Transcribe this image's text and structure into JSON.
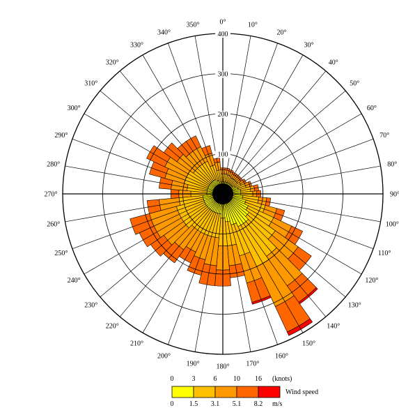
{
  "chart_data": {
    "type": "wind-rose",
    "sector_width_deg": 10,
    "direction_labels": [
      "0",
      "10",
      "20",
      "30",
      "40",
      "50",
      "60",
      "70",
      "80",
      "90",
      "100",
      "110",
      "120",
      "130",
      "140",
      "150",
      "160",
      "170",
      "180",
      "190",
      "200",
      "210",
      "220",
      "230",
      "240",
      "250",
      "260",
      "270",
      "280",
      "290",
      "300",
      "310",
      "320",
      "330",
      "340",
      "350"
    ],
    "radial_ticks": [
      100,
      200,
      300,
      400
    ],
    "radial_max": 400,
    "speed_bins": [
      {
        "color": "#ffff00"
      },
      {
        "color": "#ffc000"
      },
      {
        "color": "#ff9900"
      },
      {
        "color": "#ff6600"
      },
      {
        "color": "#ff0000"
      }
    ],
    "bin_edges_knots": [
      "0",
      "3",
      "6",
      "10",
      "16"
    ],
    "bin_edges_knots_unit": "(knots)",
    "bin_edges_ms": [
      "0",
      "1.5",
      "3.1",
      "5.1",
      "8.2"
    ],
    "bin_edges_ms_unit": "m/s",
    "legend_title": "Wind speed",
    "sectors": [
      {
        "dir": 0,
        "values": [
          30,
          20,
          10,
          5,
          0
        ]
      },
      {
        "dir": 10,
        "values": [
          30,
          20,
          10,
          5,
          0
        ]
      },
      {
        "dir": 20,
        "values": [
          30,
          18,
          10,
          5,
          0
        ]
      },
      {
        "dir": 30,
        "values": [
          30,
          15,
          10,
          5,
          0
        ]
      },
      {
        "dir": 40,
        "values": [
          30,
          15,
          10,
          5,
          0
        ]
      },
      {
        "dir": 50,
        "values": [
          30,
          15,
          10,
          5,
          0
        ]
      },
      {
        "dir": 60,
        "values": [
          35,
          15,
          10,
          5,
          0
        ]
      },
      {
        "dir": 70,
        "values": [
          40,
          20,
          10,
          5,
          0
        ]
      },
      {
        "dir": 80,
        "values": [
          45,
          25,
          10,
          10,
          0
        ]
      },
      {
        "dir": 90,
        "values": [
          45,
          30,
          10,
          10,
          0
        ]
      },
      {
        "dir": 100,
        "values": [
          50,
          40,
          20,
          10,
          0
        ]
      },
      {
        "dir": 110,
        "values": [
          60,
          50,
          30,
          20,
          0
        ]
      },
      {
        "dir": 120,
        "values": [
          70,
          70,
          50,
          30,
          0
        ]
      },
      {
        "dir": 130,
        "values": [
          80,
          80,
          70,
          40,
          0
        ]
      },
      {
        "dir": 140,
        "values": [
          90,
          100,
          90,
          50,
          5
        ]
      },
      {
        "dir": 150,
        "values": [
          90,
          110,
          110,
          70,
          10
        ]
      },
      {
        "dir": 160,
        "values": [
          80,
          80,
          70,
          50,
          5
        ]
      },
      {
        "dir": 170,
        "values": [
          70,
          60,
          50,
          30,
          0
        ]
      },
      {
        "dir": 180,
        "values": [
          60,
          70,
          60,
          40,
          0
        ]
      },
      {
        "dir": 190,
        "values": [
          50,
          60,
          70,
          50,
          0
        ]
      },
      {
        "dir": 200,
        "values": [
          50,
          60,
          60,
          40,
          0
        ]
      },
      {
        "dir": 210,
        "values": [
          50,
          60,
          50,
          30,
          0
        ]
      },
      {
        "dir": 220,
        "values": [
          50,
          60,
          60,
          40,
          0
        ]
      },
      {
        "dir": 230,
        "values": [
          50,
          70,
          60,
          40,
          0
        ]
      },
      {
        "dir": 240,
        "values": [
          50,
          70,
          70,
          40,
          0
        ]
      },
      {
        "dir": 250,
        "values": [
          50,
          70,
          70,
          50,
          0
        ]
      },
      {
        "dir": 260,
        "values": [
          50,
          60,
          50,
          30,
          0
        ]
      },
      {
        "dir": 270,
        "values": [
          40,
          40,
          30,
          20,
          0
        ]
      },
      {
        "dir": 280,
        "values": [
          40,
          50,
          40,
          30,
          0
        ]
      },
      {
        "dir": 290,
        "values": [
          40,
          60,
          50,
          40,
          0
        ]
      },
      {
        "dir": 300,
        "values": [
          40,
          60,
          60,
          50,
          0
        ]
      },
      {
        "dir": 310,
        "values": [
          40,
          50,
          50,
          40,
          0
        ]
      },
      {
        "dir": 320,
        "values": [
          40,
          50,
          40,
          30,
          0
        ]
      },
      {
        "dir": 330,
        "values": [
          40,
          50,
          40,
          30,
          0
        ]
      },
      {
        "dir": 340,
        "values": [
          35,
          40,
          30,
          20,
          0
        ]
      },
      {
        "dir": 350,
        "values": [
          30,
          30,
          20,
          10,
          0
        ]
      }
    ]
  }
}
